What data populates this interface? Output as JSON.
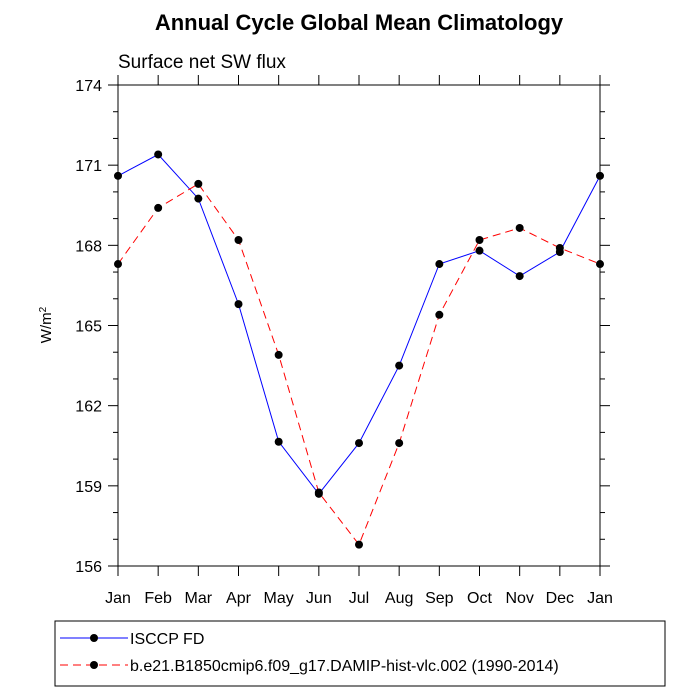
{
  "chart_data": {
    "type": "line",
    "title": "Annual Cycle Global Mean Climatology",
    "subtitle": "Surface net SW flux",
    "ylabel": "W/m",
    "ylabel_superscript": "2",
    "xlabel": "",
    "categories": [
      "Jan",
      "Feb",
      "Mar",
      "Apr",
      "May",
      "Jun",
      "Jul",
      "Aug",
      "Sep",
      "Oct",
      "Nov",
      "Dec",
      "Jan"
    ],
    "ylim": [
      156,
      174
    ],
    "yticks": [
      156,
      159,
      162,
      165,
      168,
      171,
      174
    ],
    "grid": false,
    "legend_position": "bottom",
    "series": [
      {
        "name": "ISCCP FD",
        "color": "#0000ff",
        "line_style": "solid",
        "marker": "filled-circle",
        "values": [
          170.6,
          171.4,
          169.75,
          165.8,
          160.65,
          158.7,
          160.6,
          163.5,
          167.3,
          167.8,
          166.85,
          167.75,
          170.6
        ]
      },
      {
        "name": "b.e21.B1850cmip6.f09_g17.DAMIP-hist-vlc.002 (1990-2014)",
        "color": "#ff0000",
        "line_style": "dashed",
        "marker": "filled-circle",
        "values": [
          167.3,
          169.4,
          170.3,
          168.2,
          163.9,
          158.75,
          156.8,
          160.6,
          165.4,
          168.2,
          168.65,
          167.9,
          167.3
        ]
      }
    ]
  }
}
